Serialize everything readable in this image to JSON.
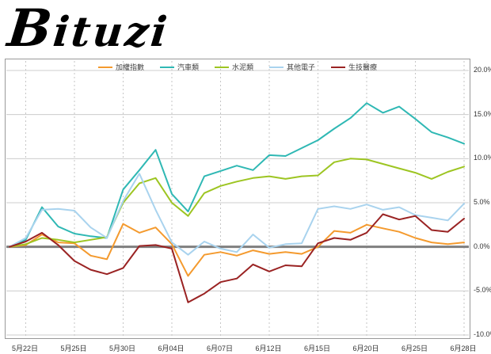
{
  "logo": {
    "text": "Bituzi"
  },
  "chart_data": {
    "type": "line",
    "title": "",
    "xlabel": "",
    "ylabel": "",
    "ylim": [
      -10,
      20
    ],
    "grid": true,
    "legend_position": "top",
    "zero_line": true,
    "n_points": 29,
    "y_ticks": [
      20,
      15,
      10,
      5,
      0,
      -5,
      -10
    ],
    "y_tick_labels": [
      "20.0%",
      "15.0%",
      "10.0%",
      "5.0%",
      "0.0%",
      "-5.0%",
      "-10.0%"
    ],
    "x_tick_indices": [
      1,
      4,
      7,
      10,
      13,
      16,
      19,
      22,
      25,
      28
    ],
    "x_tick_labels": [
      "5月22日",
      "5月25日",
      "5月30日",
      "6月04日",
      "6月07日",
      "6月12日",
      "6月15日",
      "6月20日",
      "6月25日",
      "6月28日"
    ],
    "series": [
      {
        "name": "加權指數",
        "color": "#f49a2e",
        "values": [
          0,
          0.2,
          1.4,
          0.5,
          0.4,
          -1.0,
          -1.4,
          2.6,
          1.6,
          2.2,
          0.3,
          -3.3,
          -0.9,
          -0.6,
          -1.0,
          -0.4,
          -0.8,
          -0.6,
          -0.8,
          0.0,
          1.8,
          1.6,
          2.5,
          2.1,
          1.7,
          1.0,
          0.5,
          0.3,
          0.5
        ]
      },
      {
        "name": "汽車類",
        "color": "#2fb8b4",
        "values": [
          0,
          0.8,
          4.5,
          2.3,
          1.5,
          1.2,
          1.0,
          6.5,
          8.7,
          11.0,
          6.0,
          4.0,
          8.0,
          8.6,
          9.2,
          8.7,
          10.4,
          10.3,
          11.2,
          12.1,
          13.4,
          14.6,
          16.3,
          15.2,
          15.9,
          14.5,
          13.0,
          12.4,
          11.7
        ]
      },
      {
        "name": "水泥類",
        "color": "#9dc522",
        "values": [
          0,
          0.3,
          1.0,
          0.8,
          0.5,
          0.8,
          1.1,
          5.0,
          7.2,
          7.8,
          5.0,
          3.5,
          6.1,
          6.9,
          7.4,
          7.8,
          8.0,
          7.7,
          8.0,
          8.1,
          9.6,
          10.0,
          9.9,
          9.4,
          8.9,
          8.4,
          7.7,
          8.5,
          9.1
        ]
      },
      {
        "name": "其他電子",
        "color": "#a9d3ee",
        "values": [
          0,
          1.0,
          4.2,
          4.3,
          4.1,
          2.2,
          1.0,
          5.2,
          8.3,
          4.2,
          0.5,
          -0.9,
          0.6,
          -0.2,
          -0.6,
          1.4,
          -0.1,
          0.3,
          0.4,
          4.3,
          4.6,
          4.3,
          4.8,
          4.2,
          4.5,
          3.6,
          3.3,
          3.0,
          4.9
        ]
      },
      {
        "name": "生技醫療",
        "color": "#9a2323",
        "values": [
          0,
          0.6,
          1.6,
          0.2,
          -1.6,
          -2.6,
          -3.1,
          -2.4,
          0.1,
          0.2,
          -0.2,
          -6.3,
          -5.3,
          -4.0,
          -3.6,
          -2.0,
          -2.8,
          -2.1,
          -2.2,
          0.4,
          1.0,
          0.8,
          1.6,
          3.7,
          3.1,
          3.5,
          1.9,
          1.7,
          3.2
        ]
      }
    ]
  }
}
